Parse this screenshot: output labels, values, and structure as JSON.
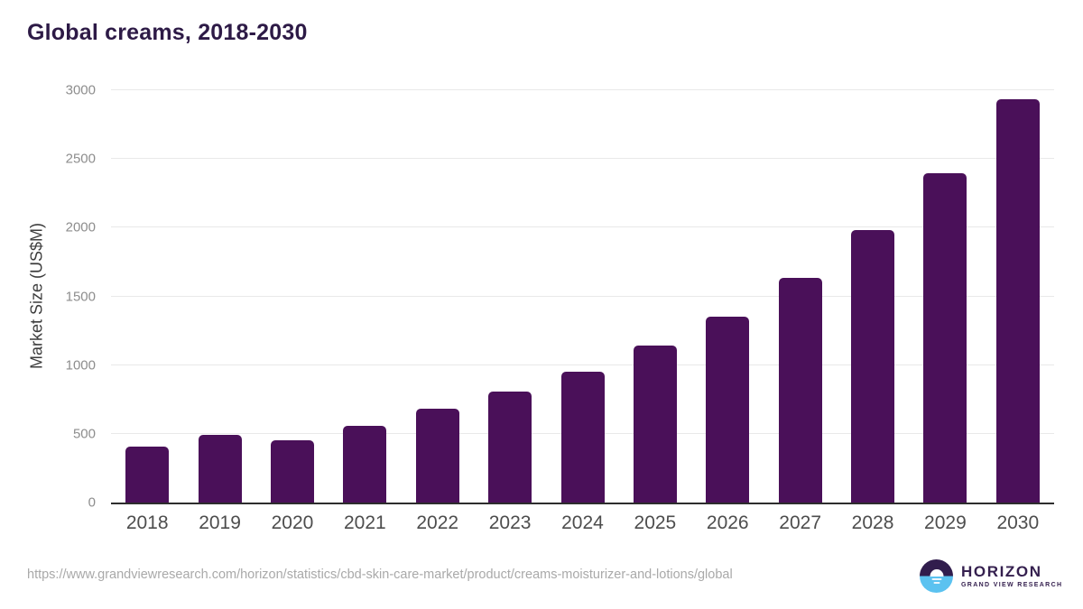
{
  "title": "Global creams, 2018-2030",
  "y_axis": {
    "label": "Market Size (US$M)"
  },
  "footer": {
    "source_url": "https://www.grandviewresearch.com/horizon/statistics/cbd-skin-care-market/product/creams-moisturizer-and-lotions/global",
    "logo": {
      "brand": "HORIZON",
      "sub_brand": "GRAND VIEW RESEARCH",
      "icon": "horizon-sun-icon"
    }
  },
  "colors": {
    "bar": "#4a1059",
    "title_text": "#2d1a46",
    "gridline": "#e9e9e9",
    "axis_line": "#2d2d2d",
    "y_tick_label": "#8d8d8d",
    "x_tick_label": "#4d4d4d",
    "url_text": "#a9a9a9",
    "logo_purple": "#311d4d",
    "logo_blue": "#5bc2f0"
  },
  "chart_data": {
    "type": "bar",
    "title": "Global creams, 2018-2030",
    "categories": [
      "2018",
      "2019",
      "2020",
      "2021",
      "2022",
      "2023",
      "2024",
      "2025",
      "2026",
      "2027",
      "2028",
      "2029",
      "2030"
    ],
    "values": [
      410,
      495,
      455,
      560,
      685,
      810,
      955,
      1140,
      1350,
      1635,
      1980,
      2395,
      2935
    ],
    "xlabel": "",
    "ylabel": "Market Size (US$M)",
    "ylim": [
      0,
      3000
    ],
    "yticks": [
      0,
      500,
      1000,
      1500,
      2000,
      2500,
      3000
    ],
    "grid": true,
    "legend_position": "none",
    "bar_corner_radius": "rounded-top"
  }
}
